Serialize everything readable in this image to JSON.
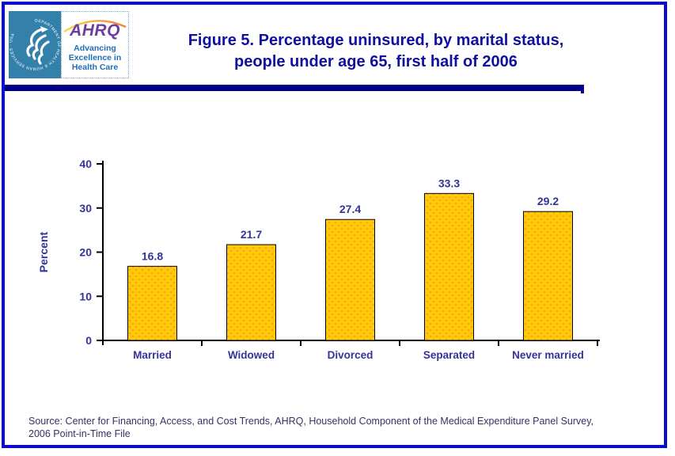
{
  "header": {
    "title_line1": "Figure 5. Percentage uninsured, by marital status,",
    "title_line2": "people under age 65, first half of 2006"
  },
  "logo": {
    "hhs_circular_text": "DEPARTMENT OF HEALTH & HUMAN SERVICES · USA",
    "ahrq_acronym": "AHRQ",
    "tagline": [
      "Advancing",
      "Excellence in",
      "Health Care"
    ]
  },
  "footer": {
    "source_line1": "Source: Center for Financing, Access, and Cost Trends, AHRQ, Household Component of the Medical Expenditure Panel Survey,",
    "source_line2": "2006 Point-in-Time File"
  },
  "colors": {
    "page_border_blue": "#0b0bcb",
    "title_navy": "#0f0fa0",
    "rule_navy": "#00008b",
    "axis_label_navy": "#333399",
    "bar_gold": "#ffc907",
    "bar_dot_orange": "#f58220",
    "hhs_blue": "#3380ab",
    "ahrq_purple": "#6f3d9b",
    "ahrq_tagline_blue": "#1e6db6",
    "source_text_blue": "#333366"
  },
  "chart_data": {
    "type": "bar",
    "title": "Figure 5. Percentage uninsured, by marital status, people under age 65, first half of 2006",
    "categories": [
      "Married",
      "Widowed",
      "Divorced",
      "Separated",
      "Never married"
    ],
    "values": [
      16.8,
      21.7,
      27.4,
      33.3,
      29.2
    ],
    "xlabel": "",
    "ylabel": "Percent",
    "ylim": [
      0,
      40
    ],
    "yticks": [
      0,
      10,
      20,
      30,
      40
    ],
    "grid": false,
    "legend": null,
    "label_color": "#333399",
    "bar_color": "#ffc907",
    "bar_dot_color": "#f58220"
  }
}
